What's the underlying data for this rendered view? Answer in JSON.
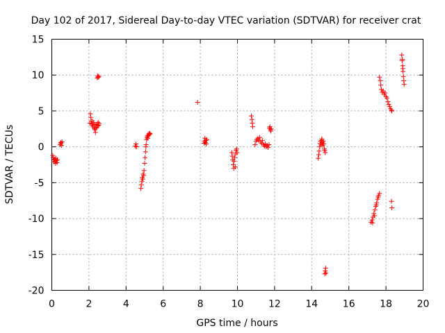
{
  "chart_data": {
    "type": "scatter",
    "title": "Day 102 of 2017, Sidereal Day-to-day VTEC variation (SDTVAR) for receiver crat",
    "xlabel": "GPS time / hours",
    "ylabel": "SDTVAR / TECUs",
    "xlim": [
      0,
      20
    ],
    "ylim": [
      -20,
      15
    ],
    "xticks": [
      0,
      2,
      4,
      6,
      8,
      10,
      12,
      14,
      16,
      18,
      20
    ],
    "yticks": [
      -20,
      -15,
      -10,
      -5,
      0,
      5,
      10,
      15
    ],
    "grid": true,
    "marker": "+",
    "color": "#ff0000",
    "series": [
      {
        "name": "SDTVAR",
        "points": [
          [
            0.05,
            -1.2
          ],
          [
            0.08,
            -1.5
          ],
          [
            0.1,
            -1.8
          ],
          [
            0.12,
            -2.1
          ],
          [
            0.15,
            -1.7
          ],
          [
            0.18,
            -2.0
          ],
          [
            0.2,
            -2.3
          ],
          [
            0.22,
            -1.6
          ],
          [
            0.25,
            -1.9
          ],
          [
            0.28,
            -2.2
          ],
          [
            0.3,
            -1.8
          ],
          [
            0.45,
            0.3
          ],
          [
            0.48,
            0.6
          ],
          [
            0.5,
            0.5
          ],
          [
            0.52,
            0.2
          ],
          [
            0.55,
            0.7
          ],
          [
            2.05,
            3.3
          ],
          [
            2.08,
            4.6
          ],
          [
            2.1,
            4.1
          ],
          [
            2.12,
            3.6
          ],
          [
            2.15,
            3.2
          ],
          [
            2.18,
            3.6
          ],
          [
            2.2,
            3.0
          ],
          [
            2.22,
            2.8
          ],
          [
            2.25,
            3.4
          ],
          [
            2.28,
            2.6
          ],
          [
            2.3,
            3.1
          ],
          [
            2.32,
            2.4
          ],
          [
            2.35,
            2.0
          ],
          [
            2.38,
            2.6
          ],
          [
            2.4,
            3.0
          ],
          [
            2.42,
            2.7
          ],
          [
            2.45,
            3.2
          ],
          [
            2.48,
            2.9
          ],
          [
            2.5,
            3.4
          ],
          [
            2.52,
            3.0
          ],
          [
            2.55,
            3.2
          ],
          [
            2.45,
            9.6
          ],
          [
            2.48,
            9.9
          ],
          [
            2.5,
            9.7
          ],
          [
            2.53,
            9.8
          ],
          [
            4.5,
            0.1
          ],
          [
            4.53,
            0.4
          ],
          [
            4.56,
            0.0
          ],
          [
            4.8,
            -5.8
          ],
          [
            4.82,
            -5.3
          ],
          [
            4.85,
            -4.8
          ],
          [
            4.87,
            -4.3
          ],
          [
            4.9,
            -4.5
          ],
          [
            4.92,
            -3.8
          ],
          [
            4.95,
            -4.0
          ],
          [
            4.97,
            -3.3
          ],
          [
            5.0,
            -2.3
          ],
          [
            5.02,
            -1.5
          ],
          [
            5.05,
            -0.7
          ],
          [
            5.07,
            0.0
          ],
          [
            5.08,
            0.3
          ],
          [
            5.1,
            1.0
          ],
          [
            5.12,
            1.3
          ],
          [
            5.15,
            1.5
          ],
          [
            5.17,
            1.2
          ],
          [
            5.2,
            1.6
          ],
          [
            5.22,
            1.8
          ],
          [
            5.25,
            1.7
          ],
          [
            5.27,
            1.9
          ],
          [
            5.3,
            1.8
          ],
          [
            7.85,
            6.2
          ],
          [
            8.2,
            0.5
          ],
          [
            8.22,
            0.8
          ],
          [
            8.25,
            1.2
          ],
          [
            8.27,
            0.6
          ],
          [
            8.3,
            0.9
          ],
          [
            8.32,
            0.4
          ],
          [
            8.35,
            1.0
          ],
          [
            9.7,
            -0.8
          ],
          [
            9.72,
            -1.3
          ],
          [
            9.75,
            -1.8
          ],
          [
            9.78,
            -2.5
          ],
          [
            9.8,
            -3.0
          ],
          [
            9.82,
            -2.0
          ],
          [
            9.85,
            -1.5
          ],
          [
            9.88,
            -2.8
          ],
          [
            9.9,
            -1.0
          ],
          [
            9.92,
            -0.5
          ],
          [
            9.95,
            -0.3
          ],
          [
            9.98,
            -0.8
          ],
          [
            10.75,
            4.3
          ],
          [
            10.78,
            3.8
          ],
          [
            10.8,
            3.3
          ],
          [
            10.82,
            2.8
          ],
          [
            10.95,
            0.3
          ],
          [
            11.0,
            0.8
          ],
          [
            11.05,
            1.0
          ],
          [
            11.1,
            1.2
          ],
          [
            11.15,
            0.9
          ],
          [
            11.2,
            1.3
          ],
          [
            11.25,
            0.7
          ],
          [
            11.3,
            0.5
          ],
          [
            11.35,
            0.9
          ],
          [
            11.4,
            0.3
          ],
          [
            11.45,
            0.1
          ],
          [
            11.5,
            0.4
          ],
          [
            11.55,
            0.0
          ],
          [
            11.6,
            0.2
          ],
          [
            11.65,
            -0.1
          ],
          [
            11.7,
            0.3
          ],
          [
            11.72,
            2.6
          ],
          [
            11.75,
            2.8
          ],
          [
            11.78,
            2.4
          ],
          [
            11.8,
            2.2
          ],
          [
            11.82,
            2.5
          ],
          [
            14.35,
            -1.6
          ],
          [
            14.38,
            -1.1
          ],
          [
            14.4,
            -0.6
          ],
          [
            14.43,
            0.0
          ],
          [
            14.45,
            0.5
          ],
          [
            14.48,
            0.8
          ],
          [
            14.5,
            0.3
          ],
          [
            14.53,
            0.9
          ],
          [
            14.55,
            1.1
          ],
          [
            14.58,
            0.6
          ],
          [
            14.6,
            0.2
          ],
          [
            14.62,
            0.8
          ],
          [
            14.65,
            0.4
          ],
          [
            14.68,
            -0.3
          ],
          [
            14.7,
            -0.5
          ],
          [
            14.73,
            -0.8
          ],
          [
            14.7,
            -17.7
          ],
          [
            14.73,
            -17.3
          ],
          [
            14.75,
            -16.9
          ],
          [
            14.77,
            -17.6
          ],
          [
            17.2,
            -10.5
          ],
          [
            17.25,
            -10.2
          ],
          [
            17.3,
            -9.8
          ],
          [
            17.35,
            -9.3
          ],
          [
            17.4,
            -8.8
          ],
          [
            17.45,
            -8.3
          ],
          [
            17.5,
            -7.8
          ],
          [
            17.55,
            -7.3
          ],
          [
            17.6,
            -6.8
          ],
          [
            17.65,
            -6.5
          ],
          [
            17.28,
            -10.6
          ],
          [
            17.38,
            -9.6
          ],
          [
            17.48,
            -8.1
          ],
          [
            17.58,
            -7.0
          ],
          [
            17.65,
            9.7
          ],
          [
            17.7,
            9.2
          ],
          [
            17.72,
            8.6
          ],
          [
            17.75,
            8.0
          ],
          [
            17.8,
            7.6
          ],
          [
            17.85,
            7.8
          ],
          [
            17.9,
            7.3
          ],
          [
            17.95,
            7.5
          ],
          [
            18.0,
            7.0
          ],
          [
            18.05,
            6.8
          ],
          [
            18.1,
            6.3
          ],
          [
            18.15,
            5.9
          ],
          [
            18.2,
            5.6
          ],
          [
            18.25,
            5.3
          ],
          [
            18.3,
            5.1
          ],
          [
            18.32,
            5.0
          ],
          [
            18.3,
            -7.6
          ],
          [
            18.32,
            -8.5
          ],
          [
            18.85,
            12.8
          ],
          [
            18.87,
            12.0
          ],
          [
            18.9,
            11.3
          ],
          [
            18.92,
            10.5
          ],
          [
            18.94,
            9.8
          ],
          [
            18.96,
            9.2
          ],
          [
            18.98,
            8.7
          ],
          [
            18.88,
            12.2
          ],
          [
            18.91,
            10.9
          ]
        ]
      }
    ]
  }
}
